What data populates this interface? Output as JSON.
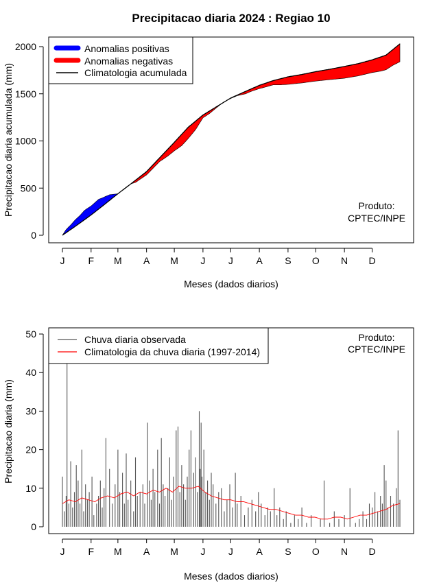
{
  "title": "Precipitacao diaria 2024 : Regiao 10",
  "colors": {
    "positive": "#0000ff",
    "negative": "#ff0000",
    "climatology_line": "#000000",
    "observed_bars": "#555555",
    "climatology_daily": "#ff0000"
  },
  "chart_data": [
    {
      "type": "area",
      "name": "cumulative",
      "xlabel": "Meses (dados diarios)",
      "ylabel": "Precipitacao diaria acumulada (mm)",
      "x_tick_labels": [
        "J",
        "F",
        "M",
        "A",
        "M",
        "J",
        "J",
        "A",
        "S",
        "O",
        "N",
        "D"
      ],
      "x_tick_days": [
        1,
        32,
        61,
        92,
        122,
        153,
        183,
        214,
        245,
        275,
        306,
        336
      ],
      "xlim": [
        1,
        366
      ],
      "ylim": [
        0,
        2000
      ],
      "y_ticks": [
        0,
        500,
        1000,
        1500,
        2000
      ],
      "legend": {
        "placement": "top-left",
        "entries": [
          "Anomalias positivas",
          "Anomalias negativas",
          "Climatologia acumulada"
        ]
      },
      "annotation": [
        "Produto:",
        "CPTEC/INPE"
      ],
      "climatology_cumulative": {
        "days": [
          1,
          15,
          32,
          45,
          61,
          75,
          92,
          106,
          122,
          137,
          153,
          168,
          183,
          199,
          214,
          229,
          245,
          260,
          275,
          290,
          306,
          321,
          336,
          351,
          366
        ],
        "values": [
          0,
          95,
          215,
          315,
          440,
          545,
          675,
          820,
          985,
          1145,
          1275,
          1365,
          1455,
          1525,
          1590,
          1640,
          1680,
          1705,
          1735,
          1760,
          1790,
          1820,
          1860,
          1910,
          2030
        ]
      },
      "observed_cumulative": {
        "days": [
          1,
          5,
          10,
          15,
          20,
          25,
          32,
          36,
          40,
          45,
          52,
          61,
          70,
          75,
          80,
          92,
          100,
          106,
          115,
          122,
          130,
          137,
          145,
          153,
          160,
          168,
          175,
          183,
          190,
          199,
          205,
          214,
          220,
          229,
          237,
          245,
          260,
          275,
          290,
          306,
          321,
          336,
          345,
          351,
          358,
          366
        ],
        "values": [
          0,
          60,
          110,
          165,
          210,
          265,
          310,
          345,
          380,
          400,
          430,
          440,
          510,
          545,
          560,
          640,
          720,
          780,
          840,
          895,
          950,
          1025,
          1120,
          1245,
          1290,
          1355,
          1410,
          1450,
          1480,
          1500,
          1525,
          1555,
          1570,
          1595,
          1595,
          1600,
          1615,
          1635,
          1650,
          1665,
          1690,
          1725,
          1740,
          1755,
          1800,
          1840
        ]
      }
    },
    {
      "type": "bar",
      "name": "daily",
      "xlabel": "Meses (dados diarios)",
      "ylabel": "Precipitacao diaria (mm)",
      "x_tick_labels": [
        "J",
        "F",
        "M",
        "A",
        "M",
        "J",
        "J",
        "A",
        "S",
        "O",
        "N",
        "D"
      ],
      "x_tick_days": [
        1,
        32,
        61,
        92,
        122,
        153,
        183,
        214,
        245,
        275,
        306,
        336
      ],
      "xlim": [
        1,
        366
      ],
      "ylim": [
        0,
        50
      ],
      "y_ticks": [
        0,
        10,
        20,
        30,
        40,
        50
      ],
      "legend": {
        "placement": "top-left",
        "entries": [
          "Chuva diaria observada",
          "Climatologia da chuva diaria (1997-2014)"
        ]
      },
      "annotation": [
        "Produto:",
        "CPTEC/INPE"
      ],
      "observed_daily": {
        "days": [
          1,
          3,
          5,
          6,
          8,
          10,
          12,
          14,
          16,
          18,
          20,
          22,
          24,
          26,
          28,
          30,
          33,
          35,
          38,
          40,
          42,
          44,
          46,
          48,
          52,
          55,
          58,
          61,
          63,
          66,
          68,
          70,
          72,
          75,
          78,
          80,
          82,
          85,
          88,
          90,
          93,
          95,
          97,
          99,
          101,
          104,
          106,
          108,
          110,
          112,
          115,
          117,
          119,
          121,
          124,
          126,
          128,
          130,
          132,
          134,
          136,
          138,
          140,
          143,
          145,
          147,
          149,
          150,
          151,
          152,
          154,
          156,
          158,
          160,
          162,
          164,
          167,
          170,
          173,
          176,
          179,
          182,
          185,
          188,
          190,
          194,
          198,
          202,
          206,
          210,
          213,
          216,
          220,
          223,
          226,
          230,
          233,
          236,
          240,
          243,
          248,
          252,
          256,
          260,
          265,
          270,
          276,
          280,
          284,
          290,
          295,
          300,
          306,
          312,
          318,
          322,
          326,
          330,
          333,
          336,
          339,
          342,
          345,
          347,
          349,
          351,
          353,
          356,
          359,
          362,
          364,
          366
        ],
        "values": [
          13,
          4,
          8,
          43,
          6,
          17,
          5,
          9,
          16,
          12,
          6,
          20,
          4,
          11,
          7,
          9,
          13,
          3,
          6,
          8,
          12,
          5,
          10,
          23,
          15,
          6,
          11,
          20,
          9,
          14,
          6,
          19,
          7,
          12,
          4,
          18,
          8,
          9,
          11,
          6,
          27,
          12,
          7,
          15,
          9,
          20,
          6,
          23,
          11,
          8,
          10,
          18,
          7,
          13,
          25,
          26,
          9,
          16,
          11,
          7,
          13,
          20,
          25,
          14,
          18,
          9,
          30,
          15,
          27,
          13,
          20,
          9,
          12,
          7,
          14,
          11,
          6,
          9,
          10,
          4,
          7,
          11,
          5,
          14,
          6,
          8,
          3,
          5,
          7,
          4,
          9,
          6,
          3,
          5,
          4,
          10,
          3,
          5,
          2,
          4,
          1,
          3,
          2,
          5,
          1,
          3,
          0,
          2,
          12,
          1,
          4,
          2,
          3,
          10,
          1,
          2,
          4,
          2,
          6,
          5,
          9,
          4,
          8,
          6,
          16,
          12,
          5,
          8,
          6,
          10,
          25,
          7
        ]
      },
      "climatology_daily": {
        "days": [
          1,
          8,
          15,
          22,
          29,
          36,
          43,
          50,
          57,
          64,
          71,
          78,
          85,
          92,
          99,
          106,
          113,
          120,
          127,
          134,
          141,
          148,
          155,
          162,
          169,
          176,
          183,
          190,
          197,
          204,
          211,
          218,
          225,
          232,
          239,
          246,
          253,
          260,
          267,
          274,
          281,
          288,
          295,
          302,
          309,
          316,
          323,
          330,
          337,
          344,
          351,
          358,
          366
        ],
        "values": [
          6,
          7,
          6.5,
          7.5,
          7,
          6.5,
          7.5,
          8,
          7.5,
          8.5,
          9,
          8,
          9,
          8.5,
          9.5,
          9,
          10,
          9,
          10.5,
          10,
          10,
          10.5,
          9,
          8,
          7.5,
          7,
          7,
          6.5,
          6.5,
          6,
          5.5,
          5,
          4.5,
          4.5,
          4,
          3.5,
          3,
          3,
          2.5,
          2.5,
          2,
          2,
          2.5,
          2.5,
          2,
          2.5,
          3,
          3,
          3.5,
          4,
          4.5,
          5.5,
          6
        ]
      }
    }
  ]
}
